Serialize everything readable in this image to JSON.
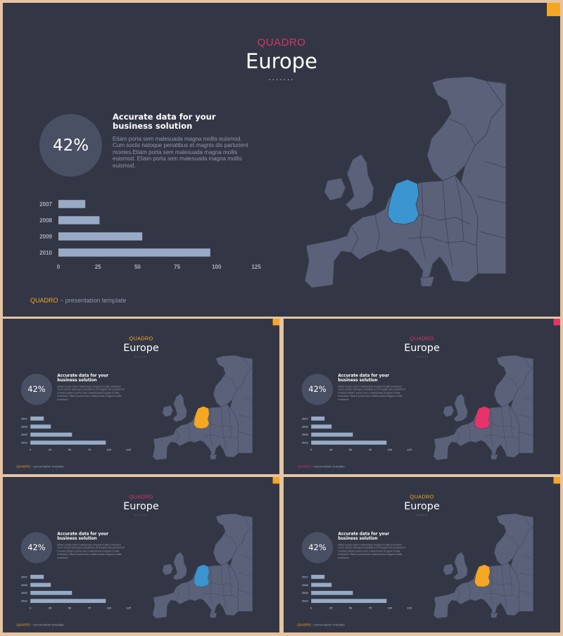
{
  "slides": [
    {
      "brand": "QUADRO",
      "brand_color": "#d6336c",
      "corner_color": "#f5a623",
      "highlight_color": "#3a95d0",
      "footer_brand_color": "#f5a623"
    },
    {
      "brand": "QUADRO",
      "brand_color": "#f5a623",
      "corner_color": "#f5a623",
      "highlight_color": "#f5a623",
      "footer_brand_color": "#f5a623"
    },
    {
      "brand": "QUADRO",
      "brand_color": "#d6336c",
      "corner_color": "#e6336c",
      "highlight_color": "#e6336c",
      "footer_brand_color": "#d6336c"
    },
    {
      "brand": "QUADRO",
      "brand_color": "#d6336c",
      "corner_color": "#f5a623",
      "highlight_color": "#3a95d0",
      "footer_brand_color": "#f5a623"
    },
    {
      "brand": "QUADRO",
      "brand_color": "#f5a623",
      "corner_color": "#f5a623",
      "highlight_color": "#f5a623",
      "footer_brand_color": "#f5a623"
    }
  ],
  "content": {
    "title": "Europe",
    "dots": ".......",
    "percent": "42%",
    "headline": "Accurate data for your business solution",
    "body": "Etiam porta sem malesuada magna mollis euismod. Cum sociis natoque penatibus et magnis dis parturient montes.Etiam porta sem malesuada magna mollis euismod. Etiam porta sem malesuada magna mollis euismod.",
    "footer_brand": "QUADRO",
    "footer_rest": " ~ presentation template"
  },
  "chart_data": {
    "type": "bar",
    "orientation": "horizontal",
    "categories": [
      "2007",
      "2008",
      "2009",
      "2010"
    ],
    "values": [
      17,
      26,
      53,
      96
    ],
    "xticks": [
      0,
      25,
      50,
      75,
      100,
      125
    ],
    "xlim": [
      0,
      125
    ],
    "bar_color": "#98aac6"
  },
  "colors": {
    "background": "#333745",
    "land": "#5a6178",
    "border": "#3a3f52"
  }
}
